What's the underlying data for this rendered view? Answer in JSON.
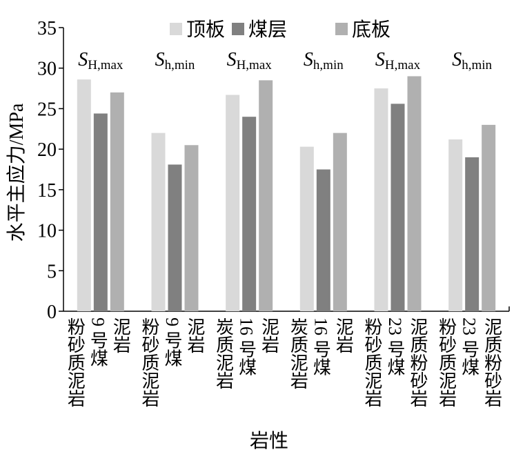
{
  "chart_data": {
    "type": "bar",
    "y_label": "水平主应力/MPa",
    "x_label": "岩性",
    "groups": [
      {
        "annotation": {
          "main": "S",
          "sub": "H,max"
        },
        "labels": [
          "粉砂质泥岩",
          "9 号煤",
          "泥岩"
        ]
      },
      {
        "annotation": {
          "main": "S",
          "sub": "h,min"
        },
        "labels": [
          "粉砂质泥岩",
          "9 号煤",
          "泥岩"
        ]
      },
      {
        "annotation": {
          "main": "S",
          "sub": "H,max"
        },
        "labels": [
          "炭质泥岩",
          "16 号煤",
          "泥岩"
        ]
      },
      {
        "annotation": {
          "main": "S",
          "sub": "h,min"
        },
        "labels": [
          "炭质泥岩",
          "16 号煤",
          "泥岩"
        ]
      },
      {
        "annotation": {
          "main": "S",
          "sub": "H,max"
        },
        "labels": [
          "粉砂质泥岩",
          "23 号煤",
          "泥质粉砂岩"
        ]
      },
      {
        "annotation": {
          "main": "S",
          "sub": "h,min"
        },
        "labels": [
          "粉砂质泥岩",
          "23 号煤",
          "泥质粉砂岩"
        ]
      }
    ],
    "series": [
      {
        "name": "顶板",
        "color": "#d9d9d9",
        "values": [
          28.6,
          22.0,
          26.7,
          20.3,
          27.5,
          21.2
        ]
      },
      {
        "name": "煤层",
        "color": "#808080",
        "values": [
          24.4,
          18.1,
          24.0,
          17.5,
          25.6,
          19.0
        ]
      },
      {
        "name": "底板",
        "color": "#b0b0b0",
        "values": [
          27.0,
          20.5,
          28.5,
          22.0,
          29.0,
          23.0
        ]
      }
    ],
    "ylim": [
      0,
      35
    ],
    "yticks": [
      0,
      5,
      10,
      15,
      20,
      25,
      30,
      35
    ]
  }
}
